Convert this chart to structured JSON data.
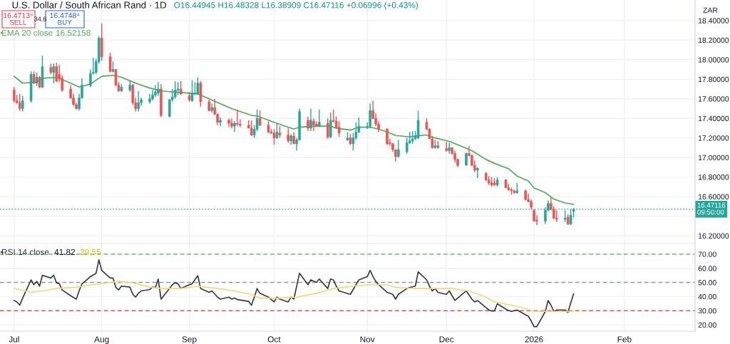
{
  "chart_data": [
    {
      "type": "candlestick",
      "title": "U.S. Dollar / South African Rand · 1D",
      "ylabel": "ZAR",
      "x": [
        "2025-07-01",
        "2025-07-02",
        "2025-07-03",
        "2025-07-04",
        "2025-07-07",
        "2025-07-08",
        "2025-07-09",
        "2025-07-10",
        "2025-07-11",
        "2025-07-14",
        "2025-07-15",
        "2025-07-16",
        "2025-07-17",
        "2025-07-18",
        "2025-07-21",
        "2025-07-22",
        "2025-07-23",
        "2025-07-24",
        "2025-07-25",
        "2025-07-28",
        "2025-07-29",
        "2025-07-30",
        "2025-07-31",
        "2025-08-01",
        "2025-08-04",
        "2025-08-05",
        "2025-08-06",
        "2025-08-07",
        "2025-08-08",
        "2025-08-11",
        "2025-08-12",
        "2025-08-13",
        "2025-08-14",
        "2025-08-15",
        "2025-08-18",
        "2025-08-19",
        "2025-08-20",
        "2025-08-21",
        "2025-08-22",
        "2025-08-25",
        "2025-08-26",
        "2025-08-27",
        "2025-08-28",
        "2025-08-29",
        "2025-09-01",
        "2025-09-02",
        "2025-09-03",
        "2025-09-04",
        "2025-09-05",
        "2025-09-08",
        "2025-09-09",
        "2025-09-10",
        "2025-09-11",
        "2025-09-12",
        "2025-09-15",
        "2025-09-16",
        "2025-09-17",
        "2025-09-18",
        "2025-09-19",
        "2025-09-22",
        "2025-09-23",
        "2025-09-24",
        "2025-09-25",
        "2025-09-26",
        "2025-09-29",
        "2025-09-30",
        "2025-10-01",
        "2025-10-02",
        "2025-10-03",
        "2025-10-06",
        "2025-10-07",
        "2025-10-08",
        "2025-10-09",
        "2025-10-10",
        "2025-10-13",
        "2025-10-14",
        "2025-10-15",
        "2025-10-16",
        "2025-10-17",
        "2025-10-20",
        "2025-10-21",
        "2025-10-22",
        "2025-10-23",
        "2025-10-24",
        "2025-10-27",
        "2025-10-28",
        "2025-10-29",
        "2025-10-30",
        "2025-10-31",
        "2025-11-03",
        "2025-11-04",
        "2025-11-05",
        "2025-11-06",
        "2025-11-07",
        "2025-11-10",
        "2025-11-11",
        "2025-11-12",
        "2025-11-13",
        "2025-11-14",
        "2025-11-17",
        "2025-11-18",
        "2025-11-19",
        "2025-11-20",
        "2025-11-21",
        "2025-11-24",
        "2025-11-25",
        "2025-11-26",
        "2025-11-27",
        "2025-11-28",
        "2025-12-01",
        "2025-12-02",
        "2025-12-03",
        "2025-12-04",
        "2025-12-05",
        "2025-12-08",
        "2025-12-09",
        "2025-12-10",
        "2025-12-11",
        "2025-12-12",
        "2025-12-15",
        "2025-12-16",
        "2025-12-17",
        "2025-12-18",
        "2025-12-19",
        "2025-12-22",
        "2025-12-23",
        "2025-12-24",
        "2025-12-25",
        "2025-12-26",
        "2025-12-29",
        "2025-12-30",
        "2025-12-31",
        "2026-01-01",
        "2026-01-02",
        "2026-01-05",
        "2026-01-06",
        "2026-01-07",
        "2026-01-08",
        "2026-01-09",
        "2026-01-12",
        "2026-01-13",
        "2026-01-14",
        "2026-01-15"
      ],
      "ohlc": [
        [
          17.69,
          17.72,
          17.56,
          17.58
        ],
        [
          17.58,
          17.64,
          17.55,
          17.56
        ],
        [
          17.56,
          17.65,
          17.48,
          17.5
        ],
        [
          17.5,
          17.63,
          17.47,
          17.58
        ],
        [
          17.58,
          17.88,
          17.56,
          17.85
        ],
        [
          17.85,
          17.88,
          17.75,
          17.76
        ],
        [
          17.76,
          17.87,
          17.73,
          17.82
        ],
        [
          17.82,
          17.83,
          17.71,
          17.72
        ],
        [
          17.72,
          18.04,
          17.71,
          17.93
        ],
        [
          17.92,
          17.96,
          17.85,
          17.87
        ],
        [
          17.87,
          17.96,
          17.76,
          17.93
        ],
        [
          17.93,
          17.97,
          17.77,
          17.78
        ],
        [
          17.85,
          17.95,
          17.77,
          17.81
        ],
        [
          17.81,
          17.84,
          17.67,
          17.69
        ],
        [
          17.7,
          17.74,
          17.6,
          17.61
        ],
        [
          17.61,
          17.65,
          17.53,
          17.54
        ],
        [
          17.54,
          17.56,
          17.49,
          17.5
        ],
        [
          17.5,
          17.65,
          17.48,
          17.61
        ],
        [
          17.61,
          17.81,
          17.6,
          17.74
        ],
        [
          17.74,
          17.9,
          17.72,
          17.86
        ],
        [
          17.86,
          18.02,
          17.85,
          17.87
        ],
        [
          17.87,
          18.01,
          17.85,
          17.98
        ],
        [
          17.98,
          18.24,
          17.96,
          18.22
        ],
        [
          18.22,
          18.37,
          17.99,
          18.03
        ],
        [
          18.03,
          18.07,
          17.87,
          17.88
        ],
        [
          17.88,
          17.98,
          17.87,
          17.9
        ],
        [
          17.9,
          17.9,
          17.73,
          17.74
        ],
        [
          17.74,
          17.77,
          17.67,
          17.68
        ],
        [
          17.68,
          17.75,
          17.67,
          17.72
        ],
        [
          17.69,
          17.79,
          17.67,
          17.74
        ],
        [
          17.74,
          17.75,
          17.54,
          17.56
        ],
        [
          17.56,
          17.61,
          17.47,
          17.5
        ],
        [
          17.5,
          17.68,
          17.47,
          17.56
        ],
        [
          17.56,
          17.61,
          17.53,
          17.59
        ],
        [
          17.57,
          17.65,
          17.55,
          17.6
        ],
        [
          17.6,
          17.69,
          17.58,
          17.64
        ],
        [
          17.64,
          17.74,
          17.62,
          17.67
        ],
        [
          17.66,
          17.77,
          17.63,
          17.7
        ],
        [
          17.7,
          17.75,
          17.41,
          17.43
        ],
        [
          17.42,
          17.6,
          17.41,
          17.59
        ],
        [
          17.59,
          17.7,
          17.57,
          17.62
        ],
        [
          17.62,
          17.78,
          17.6,
          17.69
        ],
        [
          17.69,
          17.77,
          17.64,
          17.7
        ],
        [
          17.7,
          17.78,
          17.64,
          17.65
        ],
        [
          17.63,
          17.67,
          17.57,
          17.59
        ],
        [
          17.58,
          17.79,
          17.57,
          17.66
        ],
        [
          17.65,
          17.77,
          17.64,
          17.66
        ],
        [
          17.65,
          17.82,
          17.64,
          17.76
        ],
        [
          17.76,
          17.78,
          17.52,
          17.57
        ],
        [
          17.57,
          17.59,
          17.47,
          17.48
        ],
        [
          17.48,
          17.55,
          17.46,
          17.51
        ],
        [
          17.51,
          17.6,
          17.44,
          17.44
        ],
        [
          17.44,
          17.45,
          17.33,
          17.36
        ],
        [
          17.36,
          17.41,
          17.32,
          17.38
        ],
        [
          17.38,
          17.4,
          17.31,
          17.35
        ],
        [
          17.35,
          17.4,
          17.3,
          17.32
        ],
        [
          17.32,
          17.37,
          17.26,
          17.35
        ],
        [
          17.35,
          17.49,
          17.32,
          17.34
        ],
        [
          17.34,
          17.39,
          17.31,
          17.33
        ],
        [
          17.33,
          17.38,
          17.3,
          17.3
        ],
        [
          17.3,
          17.38,
          17.22,
          17.23
        ],
        [
          17.23,
          17.33,
          17.2,
          17.29
        ],
        [
          17.29,
          17.49,
          17.27,
          17.4
        ],
        [
          17.4,
          17.48,
          17.32,
          17.33
        ],
        [
          17.33,
          17.37,
          17.25,
          17.26
        ],
        [
          17.26,
          17.29,
          17.24,
          17.25
        ],
        [
          17.25,
          17.29,
          17.13,
          17.2
        ],
        [
          17.2,
          17.35,
          17.19,
          17.26
        ],
        [
          17.25,
          17.32,
          17.2,
          17.23
        ],
        [
          17.23,
          17.3,
          17.15,
          17.17
        ],
        [
          17.17,
          17.24,
          17.13,
          17.22
        ],
        [
          17.22,
          17.26,
          17.14,
          17.14
        ],
        [
          17.14,
          17.2,
          17.07,
          17.18
        ],
        [
          17.18,
          17.5,
          17.18,
          17.47
        ],
        [
          17.38,
          17.42,
          17.27,
          17.3
        ],
        [
          17.3,
          17.5,
          17.27,
          17.38
        ],
        [
          17.37,
          17.4,
          17.27,
          17.33
        ],
        [
          17.34,
          17.37,
          17.31,
          17.32
        ],
        [
          17.32,
          17.49,
          17.31,
          17.36
        ],
        [
          17.35,
          17.4,
          17.19,
          17.21
        ],
        [
          17.21,
          17.46,
          17.2,
          17.38
        ],
        [
          17.38,
          17.49,
          17.36,
          17.37
        ],
        [
          17.37,
          17.42,
          17.3,
          17.31
        ],
        [
          17.31,
          17.37,
          17.21,
          17.25
        ],
        [
          17.18,
          17.26,
          17.17,
          17.2
        ],
        [
          17.2,
          17.24,
          17.13,
          17.14
        ],
        [
          17.14,
          17.25,
          17.07,
          17.2
        ],
        [
          17.2,
          17.36,
          17.18,
          17.26
        ],
        [
          17.26,
          17.41,
          17.25,
          17.32
        ],
        [
          17.31,
          17.36,
          17.29,
          17.32
        ],
        [
          17.32,
          17.55,
          17.3,
          17.48
        ],
        [
          17.48,
          17.58,
          17.39,
          17.4
        ],
        [
          17.4,
          17.45,
          17.32,
          17.34
        ],
        [
          17.34,
          17.37,
          17.26,
          17.29
        ],
        [
          17.29,
          17.3,
          17.13,
          17.14
        ],
        [
          17.15,
          17.19,
          17.12,
          17.14
        ],
        [
          17.14,
          17.15,
          17.06,
          17.08
        ],
        [
          17.08,
          17.08,
          16.96,
          17.01
        ],
        [
          17.01,
          17.18,
          17.0,
          17.08
        ],
        [
          17.06,
          17.2,
          17.04,
          17.15
        ],
        [
          17.15,
          17.26,
          17.14,
          17.17
        ],
        [
          17.17,
          17.27,
          17.14,
          17.19
        ],
        [
          17.19,
          17.27,
          17.18,
          17.22
        ],
        [
          17.2,
          17.48,
          17.19,
          17.38
        ],
        [
          17.36,
          17.4,
          17.28,
          17.29
        ],
        [
          17.29,
          17.3,
          17.19,
          17.19
        ],
        [
          17.19,
          17.22,
          17.09,
          17.1
        ],
        [
          17.1,
          17.18,
          17.09,
          17.12
        ],
        [
          17.12,
          17.17,
          17.09,
          17.1
        ],
        [
          17.09,
          17.16,
          17.06,
          17.07
        ],
        [
          17.07,
          17.15,
          17.04,
          17.1
        ],
        [
          17.1,
          17.1,
          17.03,
          17.04
        ],
        [
          17.04,
          17.07,
          16.95,
          16.98
        ],
        [
          16.98,
          16.99,
          16.9,
          16.92
        ],
        [
          16.92,
          17.05,
          16.92,
          17.04
        ],
        [
          17.04,
          17.12,
          17.01,
          17.02
        ],
        [
          17.02,
          17.03,
          16.91,
          16.92
        ],
        [
          16.92,
          16.97,
          16.85,
          16.87
        ],
        [
          16.87,
          16.9,
          16.79,
          16.89
        ],
        [
          16.84,
          16.85,
          16.76,
          16.77
        ],
        [
          16.77,
          16.81,
          16.72,
          16.74
        ],
        [
          16.74,
          16.8,
          16.7,
          16.72
        ],
        [
          16.74,
          16.79,
          16.71,
          16.72
        ],
        [
          16.72,
          16.8,
          16.7,
          16.77
        ],
        [
          16.77,
          16.78,
          16.69,
          16.69
        ],
        [
          16.69,
          16.73,
          16.66,
          16.67
        ],
        [
          16.67,
          16.69,
          16.62,
          16.66
        ],
        [
          16.66,
          16.67,
          16.63,
          16.64
        ],
        [
          16.64,
          16.74,
          16.63,
          16.66
        ],
        [
          16.66,
          16.67,
          16.56,
          16.57
        ],
        [
          16.57,
          16.63,
          16.54,
          16.55
        ],
        [
          16.55,
          16.57,
          16.47,
          16.49
        ],
        [
          16.46,
          16.47,
          16.35,
          16.35
        ],
        [
          16.36,
          16.41,
          16.31,
          16.35
        ],
        [
          16.35,
          16.49,
          16.32,
          16.46
        ],
        [
          16.46,
          16.56,
          16.45,
          16.53
        ],
        [
          16.53,
          16.59,
          16.46,
          16.47
        ],
        [
          16.47,
          16.5,
          16.37,
          16.38
        ],
        [
          16.38,
          16.46,
          16.34,
          16.37
        ],
        [
          16.37,
          16.46,
          16.34,
          16.38
        ],
        [
          16.39,
          16.42,
          16.31,
          16.32
        ],
        [
          16.32,
          16.47,
          16.31,
          16.41
        ],
        [
          16.44945,
          16.48328,
          16.38909,
          16.47116
        ]
      ],
      "colors": [
        "#ef5350",
        "#ef5350",
        "#ef5350",
        "#26a69a",
        "#26a69a",
        "#ef5350",
        "#26a69a",
        "#ef5350",
        "#26a69a",
        "#ef5350",
        "#26a69a",
        "#ef5350",
        "#ef5350",
        "#ef5350",
        "#ef5350",
        "#ef5350",
        "#ef5350",
        "#26a69a",
        "#26a69a",
        "#26a69a",
        "#26a69a",
        "#26a69a",
        "#26a69a",
        "#ef5350",
        "#ef5350",
        "#26a69a",
        "#ef5350",
        "#ef5350",
        "#26a69a",
        "#26a69a",
        "#ef5350",
        "#ef5350",
        "#26a69a",
        "#26a69a",
        "#26a69a",
        "#26a69a",
        "#26a69a",
        "#26a69a",
        "#ef5350",
        "#26a69a",
        "#26a69a",
        "#26a69a",
        "#26a69a",
        "#ef5350",
        "#ef5350",
        "#26a69a",
        "#26a69a",
        "#26a69a",
        "#ef5350",
        "#ef5350",
        "#26a69a",
        "#ef5350",
        "#ef5350",
        "#26a69a",
        "#ef5350",
        "#ef5350",
        "#26a69a",
        "#ef5350",
        "#ef5350",
        "#ef5350",
        "#ef5350",
        "#26a69a",
        "#26a69a",
        "#ef5350",
        "#ef5350",
        "#ef5350",
        "#ef5350",
        "#26a69a",
        "#ef5350",
        "#ef5350",
        "#26a69a",
        "#ef5350",
        "#26a69a",
        "#26a69a",
        "#ef5350",
        "#26a69a",
        "#ef5350",
        "#ef5350",
        "#26a69a",
        "#ef5350",
        "#26a69a",
        "#ef5350",
        "#ef5350",
        "#ef5350",
        "#26a69a",
        "#ef5350",
        "#26a69a",
        "#26a69a",
        "#26a69a",
        "#26a69a",
        "#26a69a",
        "#ef5350",
        "#ef5350",
        "#ef5350",
        "#ef5350",
        "#ef5350",
        "#ef5350",
        "#ef5350",
        "#26a69a",
        "#26a69a",
        "#26a69a",
        "#26a69a",
        "#26a69a",
        "#26a69a",
        "#ef5350",
        "#ef5350",
        "#ef5350",
        "#26a69a",
        "#ef5350",
        "#ef5350",
        "#26a69a",
        "#ef5350",
        "#ef5350",
        "#ef5350",
        "#26a69a",
        "#ef5350",
        "#ef5350",
        "#ef5350",
        "#26a69a",
        "#ef5350",
        "#ef5350",
        "#ef5350",
        "#ef5350",
        "#26a69a",
        "#ef5350",
        "#ef5350",
        "#ef5350",
        "#ef5350",
        "#26a69a",
        "#ef5350",
        "#ef5350",
        "#ef5350",
        "#ef5350",
        "#ef5350",
        "#26a69a",
        "#26a69a",
        "#ef5350",
        "#ef5350",
        "#ef5350",
        "#26a69a",
        "#ef5350",
        "#26a69a",
        "#26a69a"
      ],
      "series": [
        {
          "name": "EMA 20 close",
          "type": "line",
          "color": "#4caf50",
          "x": [
            "2025-07-01",
            "2025-07-04",
            "2025-07-09",
            "2025-07-11",
            "2025-07-16",
            "2025-07-21",
            "2025-07-24",
            "2025-07-28",
            "2025-08-01",
            "2025-08-05",
            "2025-08-08",
            "2025-08-13",
            "2025-08-18",
            "2025-08-22",
            "2025-08-29",
            "2025-09-04",
            "2025-09-08",
            "2025-09-16",
            "2025-09-23",
            "2025-09-25",
            "2025-10-01",
            "2025-10-08",
            "2025-10-10",
            "2025-10-16",
            "2025-10-21",
            "2025-10-23",
            "2025-10-28",
            "2025-10-31",
            "2025-11-04",
            "2025-11-07",
            "2025-11-11",
            "2025-11-13",
            "2025-11-18",
            "2025-11-20",
            "2025-11-24",
            "2025-11-27",
            "2025-12-02",
            "2025-12-05",
            "2025-12-10",
            "2025-12-15",
            "2025-12-18",
            "2025-12-23",
            "2025-12-26",
            "2025-12-30",
            "2026-01-01",
            "2026-01-05",
            "2026-01-08",
            "2026-01-12",
            "2026-01-15"
          ],
          "values": [
            17.83,
            17.76,
            17.77,
            17.81,
            17.82,
            17.76,
            17.72,
            17.75,
            17.83,
            17.84,
            17.82,
            17.76,
            17.71,
            17.68,
            17.665,
            17.65,
            17.6,
            17.5,
            17.43,
            17.425,
            17.36,
            17.29,
            17.31,
            17.32,
            17.32,
            17.3,
            17.28,
            17.31,
            17.31,
            17.29,
            17.25,
            17.225,
            17.21,
            17.22,
            17.23,
            17.2,
            17.165,
            17.13,
            17.07,
            16.98,
            16.94,
            16.885,
            16.81,
            16.76,
            16.69,
            16.64,
            16.575,
            16.535,
            16.52158
          ]
        }
      ],
      "ylim": [
        16.12,
        18.61
      ],
      "yticks": [
        {
          "value": 16.2,
          "label": "16.20000"
        },
        {
          "value": 16.4,
          "label": null
        },
        {
          "value": 16.6,
          "label": "16.60000"
        },
        {
          "value": 16.8,
          "label": "16.80000"
        },
        {
          "value": 17.0,
          "label": "17.00000"
        },
        {
          "value": 17.2,
          "label": "17.20000"
        },
        {
          "value": 17.4,
          "label": "17.40000"
        },
        {
          "value": 17.6,
          "label": "17.60000"
        },
        {
          "value": 17.8,
          "label": "17.80000"
        },
        {
          "value": 18.0,
          "label": "18.00000"
        },
        {
          "value": 18.2,
          "label": "18.20000"
        },
        {
          "value": 18.4,
          "label": "18.40000"
        }
      ],
      "xlim": [
        "2025-06-26",
        "2026-02-27"
      ],
      "tick_labels": "y",
      "grid": true,
      "legend": "top left",
      "ref_lines": [
        {
          "axis": "y",
          "value": 16.47116,
          "label": "16.47116\n09:50:00",
          "color": "#26a69a",
          "line_style": "dotted"
        }
      ],
      "annotations": [
        "O16.44945 H16.48328 L16.38909 C16.47116 +0.06996 (+0.43%)",
        "16.4713⁸",
        "SELL",
        "34.6",
        "16.4748⁴",
        "BUY",
        "16.52158"
      ]
    },
    {
      "type": "line",
      "series": [
        {
          "name": "RSI 14 close",
          "color": "#363a45",
          "x": [
            "2025-07-01",
            "2025-07-02",
            "2025-07-03",
            "2025-07-04",
            "2025-07-07",
            "2025-07-08",
            "2025-07-09",
            "2025-07-10",
            "2025-07-11",
            "2025-07-14",
            "2025-07-15",
            "2025-07-16",
            "2025-07-17",
            "2025-07-18",
            "2025-07-21",
            "2025-07-23",
            "2025-07-24",
            "2025-07-25",
            "2025-07-28",
            "2025-07-30",
            "2025-07-31",
            "2025-08-01",
            "2025-08-04",
            "2025-08-05",
            "2025-08-06",
            "2025-08-07",
            "2025-08-08",
            "2025-08-11",
            "2025-08-12",
            "2025-08-13",
            "2025-08-14",
            "2025-08-15",
            "2025-08-18",
            "2025-08-19",
            "2025-08-20",
            "2025-08-21",
            "2025-08-22",
            "2025-08-25",
            "2025-08-26",
            "2025-08-27",
            "2025-08-28",
            "2025-08-29",
            "2025-09-01",
            "2025-09-02",
            "2025-09-04",
            "2025-09-05",
            "2025-09-08",
            "2025-09-09",
            "2025-09-11",
            "2025-09-12",
            "2025-09-15",
            "2025-09-16",
            "2025-09-17",
            "2025-09-18",
            "2025-09-22",
            "2025-09-23",
            "2025-09-24",
            "2025-09-25",
            "2025-09-26",
            "2025-09-29",
            "2025-09-30",
            "2025-10-01",
            "2025-10-02",
            "2025-10-03",
            "2025-10-06",
            "2025-10-07",
            "2025-10-08",
            "2025-10-10",
            "2025-10-13",
            "2025-10-14",
            "2025-10-16",
            "2025-10-17",
            "2025-10-20",
            "2025-10-21",
            "2025-10-22",
            "2025-10-23",
            "2025-10-24",
            "2025-10-28",
            "2025-10-29",
            "2025-10-30",
            "2025-10-31",
            "2025-11-03",
            "2025-11-04",
            "2025-11-05",
            "2025-11-06",
            "2025-11-07",
            "2025-11-10",
            "2025-11-12",
            "2025-11-13",
            "2025-11-14",
            "2025-11-17",
            "2025-11-18",
            "2025-11-20",
            "2025-11-21",
            "2025-11-24",
            "2025-11-25",
            "2025-11-26",
            "2025-11-27",
            "2025-11-28",
            "2025-12-01",
            "2025-12-02",
            "2025-12-03",
            "2025-12-04",
            "2025-12-08",
            "2025-12-10",
            "2025-12-11",
            "2025-12-12",
            "2025-12-15",
            "2025-12-16",
            "2025-12-17",
            "2025-12-18",
            "2025-12-19",
            "2025-12-22",
            "2025-12-23",
            "2025-12-24",
            "2025-12-26",
            "2025-12-29",
            "2025-12-30",
            "2025-12-31",
            "2026-01-01",
            "2026-01-02",
            "2026-01-05",
            "2026-01-06",
            "2026-01-07",
            "2026-01-08",
            "2026-01-09",
            "2026-01-12",
            "2026-01-13",
            "2026-01-14",
            "2026-01-15"
          ],
          "values": [
            37.2,
            36.2,
            33.9,
            38.9,
            51.8,
            48.4,
            50.7,
            47.4,
            55.1,
            53.1,
            55.1,
            49.7,
            49.1,
            44.7,
            40.6,
            38.2,
            44,
            49,
            54.1,
            56.5,
            66,
            58.5,
            53.1,
            53.1,
            46.4,
            44.7,
            47.4,
            46.7,
            41.6,
            39.6,
            42.3,
            44,
            45,
            46.7,
            46.4,
            52.4,
            38.2,
            45.7,
            48.4,
            49.7,
            49.1,
            45.7,
            48.4,
            49.1,
            54.8,
            45.7,
            43,
            44,
            39.6,
            38.2,
            39.6,
            38.2,
            38.9,
            37.9,
            36.6,
            33.9,
            39.6,
            45.7,
            42.3,
            39.6,
            37.9,
            36.2,
            39.6,
            38.2,
            36.2,
            39.6,
            38.2,
            56.5,
            48.4,
            51.8,
            50,
            52.4,
            45.7,
            52.4,
            51.8,
            47.4,
            44,
            41.6,
            45,
            48.4,
            51.8,
            54.1,
            58.5,
            54.1,
            50.7,
            48.4,
            43,
            41.6,
            38.2,
            41.6,
            45.7,
            46.4,
            47.4,
            57.5,
            51.8,
            47.4,
            44,
            45.7,
            43,
            41.6,
            44,
            40.6,
            37.2,
            44,
            38.2,
            36.2,
            37.2,
            32.2,
            30.5,
            29.8,
            29.8,
            34.9,
            31.1,
            30.1,
            29.5,
            30.5,
            27.1,
            26.1,
            22.7,
            18.7,
            18.7,
            29.5,
            37.2,
            33.9,
            29.5,
            30.5,
            30.5,
            28.8,
            35.5,
            41.82
          ]
        },
        {
          "color": "#f7d774",
          "x": [
            "2025-07-01",
            "2025-07-07",
            "2025-07-11",
            "2025-07-16",
            "2025-07-23",
            "2025-07-29",
            "2025-08-04",
            "2025-08-07",
            "2025-08-12",
            "2025-08-18",
            "2025-08-22",
            "2025-08-29",
            "2025-09-04",
            "2025-09-11",
            "2025-09-17",
            "2025-09-23",
            "2025-09-26",
            "2025-10-03",
            "2025-10-09",
            "2025-10-16",
            "2025-10-22",
            "2025-10-29",
            "2025-11-04",
            "2025-11-10",
            "2025-11-13",
            "2025-11-20",
            "2025-11-26",
            "2025-12-03",
            "2025-12-09",
            "2025-12-15",
            "2025-12-18",
            "2025-12-24",
            "2025-12-29",
            "2026-01-01",
            "2026-01-07",
            "2026-01-13",
            "2026-01-15"
          ],
          "values": [
            45.7,
            43,
            44,
            45.7,
            46.7,
            48.4,
            50,
            50.7,
            49.7,
            46.7,
            45.7,
            45.7,
            47.4,
            45.7,
            44,
            41.6,
            38.9,
            38.9,
            39.6,
            42.3,
            45.7,
            47.4,
            48.4,
            48.4,
            46.4,
            45.7,
            45.7,
            45.7,
            44,
            39.6,
            36.2,
            33.9,
            31.5,
            29.5,
            29.5,
            29.5,
            29.55
          ]
        }
      ],
      "ylim": [
        15.5,
        77.5
      ],
      "yticks": [
        {
          "value": 20,
          "label": "20.00"
        },
        {
          "value": 30,
          "label": "30.00"
        },
        {
          "value": 40,
          "label": "40.00"
        },
        {
          "value": 50,
          "label": "50.00"
        },
        {
          "value": 60,
          "label": "60.00"
        },
        {
          "value": 70,
          "label": "70.00"
        }
      ],
      "xlim": [
        "2025-06-26",
        "2026-02-27"
      ],
      "xticks": [
        {
          "value": "2025-07-01",
          "label": "Jul"
        },
        {
          "value": "2025-08-01",
          "label": "Aug"
        },
        {
          "value": "2025-09-01",
          "label": "Sep"
        },
        {
          "value": "2025-10-01",
          "label": "Oct"
        },
        {
          "value": "2025-11-03",
          "label": "Nov"
        },
        {
          "value": "2025-12-01",
          "label": "Dec"
        },
        {
          "value": "2026-01-01",
          "label": "2026"
        },
        {
          "value": "2026-02-02",
          "label": "Feb"
        }
      ],
      "grid": true,
      "legend": "top left",
      "ref_lines": [
        {
          "axis": "y",
          "value": 70,
          "color": "#4caf50",
          "line_style": "dashed"
        },
        {
          "axis": "y",
          "value": 50,
          "color": "#9598a1",
          "line_style": "dashed"
        },
        {
          "axis": "y",
          "value": 30,
          "color": "#ef5350",
          "line_style": "dashed"
        }
      ],
      "annotations": [
        "41.82",
        "29.55"
      ]
    }
  ]
}
